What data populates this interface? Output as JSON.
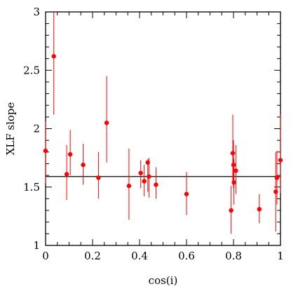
{
  "chart_data": {
    "type": "scatter",
    "title": "",
    "xlabel": "cos(i)",
    "ylabel": "XLF slope",
    "xlim": [
      0,
      1
    ],
    "ylim": [
      1,
      3
    ],
    "x_ticks": [
      0,
      0.2,
      0.4,
      0.6,
      0.8,
      1
    ],
    "x_tick_labels": [
      "0",
      "0.2",
      "0.4",
      "0.6",
      "0.8",
      "1"
    ],
    "y_ticks": [
      1,
      1.5,
      2,
      2.5,
      3
    ],
    "y_tick_labels": [
      "1",
      "1.5",
      "2",
      "2.5",
      "3"
    ],
    "grid": false,
    "marker_color": "#ff0000",
    "errorbar_color": "#ff0000",
    "reference_line": {
      "y": 1.59,
      "x_range": [
        0,
        1
      ],
      "color": "#000000"
    },
    "points": [
      {
        "x": 0.0,
        "y": 1.81,
        "y_low": 1.53,
        "y_high": 2.06
      },
      {
        "x": 0.035,
        "y": 2.62,
        "y_low": 2.12,
        "y_high": 3.0
      },
      {
        "x": 0.09,
        "y": 1.61,
        "y_low": 1.39,
        "y_high": 1.86
      },
      {
        "x": 0.105,
        "y": 1.78,
        "y_low": 1.6,
        "y_high": 1.99
      },
      {
        "x": 0.16,
        "y": 1.69,
        "y_low": 1.52,
        "y_high": 1.87
      },
      {
        "x": 0.225,
        "y": 1.58,
        "y_low": 1.4,
        "y_high": 1.8
      },
      {
        "x": 0.26,
        "y": 2.05,
        "y_low": 1.71,
        "y_high": 2.45
      },
      {
        "x": 0.355,
        "y": 1.51,
        "y_low": 1.22,
        "y_high": 1.83
      },
      {
        "x": 0.405,
        "y": 1.62,
        "y_low": 1.49,
        "y_high": 1.73
      },
      {
        "x": 0.42,
        "y": 1.55,
        "y_low": 1.42,
        "y_high": 1.69
      },
      {
        "x": 0.435,
        "y": 1.71,
        "y_low": 1.46,
        "y_high": 1.74
      },
      {
        "x": 0.44,
        "y": 1.59,
        "y_low": 1.41,
        "y_high": 1.75
      },
      {
        "x": 0.47,
        "y": 1.52,
        "y_low": 1.4,
        "y_high": 1.67
      },
      {
        "x": 0.6,
        "y": 1.44,
        "y_low": 1.26,
        "y_high": 1.63
      },
      {
        "x": 0.79,
        "y": 1.3,
        "y_low": 1.1,
        "y_high": 1.51
      },
      {
        "x": 0.797,
        "y": 1.79,
        "y_low": 1.52,
        "y_high": 2.12
      },
      {
        "x": 0.8,
        "y": 1.69,
        "y_low": 1.49,
        "y_high": 1.9
      },
      {
        "x": 0.802,
        "y": 1.54,
        "y_low": 1.35,
        "y_high": 1.74
      },
      {
        "x": 0.81,
        "y": 1.64,
        "y_low": 1.44,
        "y_high": 1.86
      },
      {
        "x": 0.91,
        "y": 1.31,
        "y_low": 1.19,
        "y_high": 1.44
      },
      {
        "x": 0.98,
        "y": 1.46,
        "y_low": 1.12,
        "y_high": 1.8
      },
      {
        "x": 0.985,
        "y": 1.58,
        "y_low": 1.35,
        "y_high": 1.81
      },
      {
        "x": 1.0,
        "y": 1.73,
        "y_low": 1.45,
        "y_high": 2.12
      }
    ]
  }
}
